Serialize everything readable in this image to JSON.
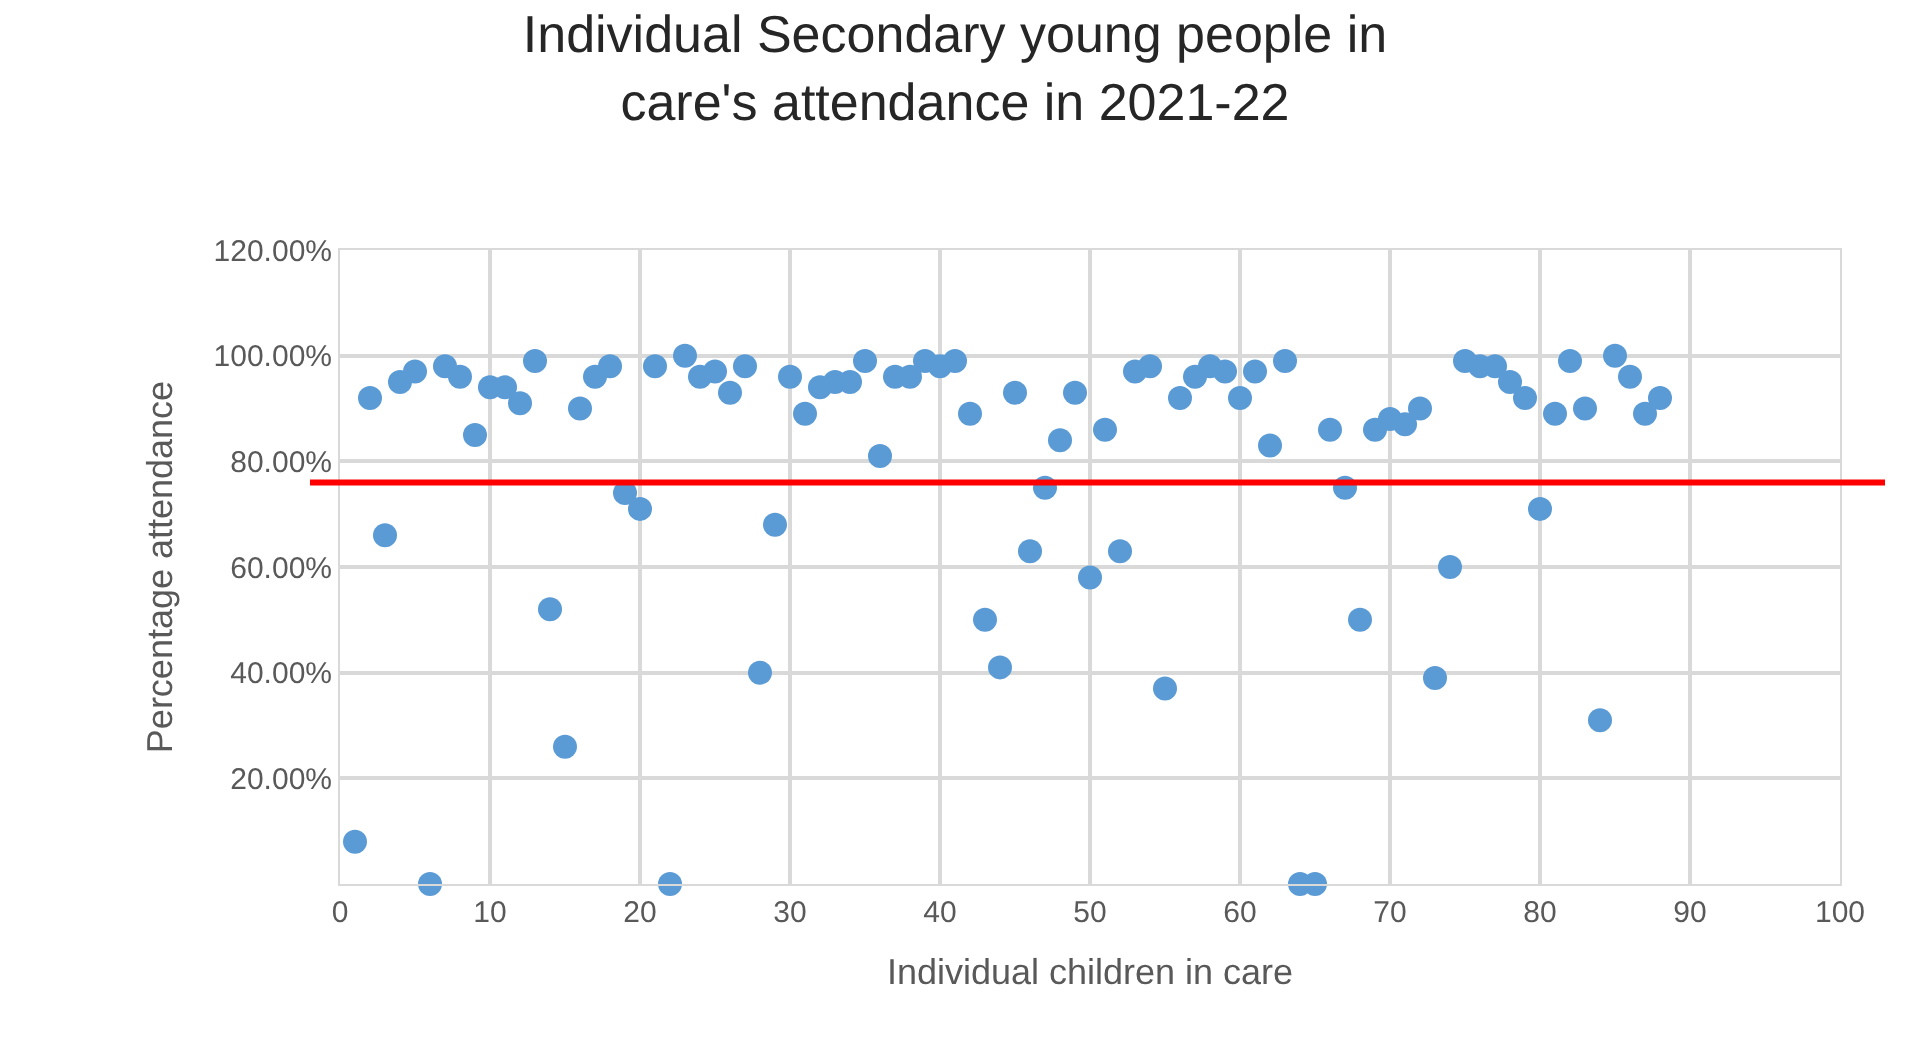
{
  "chart_data": {
    "type": "scatter",
    "title": "Individual Secondary young people in care's attendance in 2021-22",
    "xlabel": "Individual children in care",
    "ylabel": "Percentage attendance",
    "x": [
      1,
      2,
      3,
      4,
      5,
      6,
      7,
      8,
      9,
      10,
      11,
      12,
      13,
      14,
      15,
      16,
      17,
      18,
      19,
      20,
      21,
      22,
      23,
      24,
      25,
      26,
      27,
      28,
      29,
      30,
      31,
      32,
      33,
      34,
      35,
      36,
      37,
      38,
      39,
      40,
      41,
      42,
      43,
      44,
      45,
      46,
      47,
      48,
      49,
      50,
      51,
      52,
      53,
      54,
      55,
      56,
      57,
      58,
      59,
      60,
      61,
      62,
      63,
      64,
      65,
      66,
      67,
      68,
      69,
      70,
      71,
      72,
      73,
      74,
      75,
      76,
      77,
      78,
      79,
      80,
      81,
      82,
      83,
      84,
      85,
      86,
      87,
      88
    ],
    "series": [
      {
        "color": "#5b9bd5",
        "values": [
          8,
          92,
          66,
          95,
          97,
          0,
          98,
          96,
          85,
          94,
          94,
          91,
          99,
          52,
          26,
          90,
          96,
          98,
          74,
          71,
          98,
          0,
          100,
          96,
          97,
          93,
          98,
          40,
          68,
          96,
          89,
          94,
          95,
          95,
          99,
          81,
          96,
          96,
          99,
          98,
          99,
          89,
          50,
          41,
          93,
          63,
          75,
          84,
          93,
          58,
          86,
          63,
          97,
          98,
          37,
          92,
          96,
          98,
          97,
          92,
          97,
          83,
          99,
          0,
          0,
          86,
          75,
          50,
          86,
          88,
          87,
          90,
          39,
          60,
          99,
          98,
          98,
          95,
          92,
          71,
          89,
          99,
          90,
          31,
          100,
          96,
          89,
          92
        ]
      }
    ],
    "xlim": [
      0,
      100
    ],
    "xticks": [
      0,
      10,
      20,
      30,
      40,
      50,
      60,
      70,
      80,
      90,
      100
    ],
    "ylim": [
      0,
      120
    ],
    "yticks": [
      {
        "value": 0,
        "label": null
      },
      {
        "value": 20,
        "label": "20.00%"
      },
      {
        "value": 40,
        "label": "40.00%"
      },
      {
        "value": 60,
        "label": "60.00%"
      },
      {
        "value": 80,
        "label": "80.00%"
      },
      {
        "value": 100,
        "label": "100.00%"
      },
      {
        "value": 120,
        "label": "120.00%"
      }
    ],
    "ref_lines": [
      {
        "axis": "y",
        "value": 76,
        "color": "#ff0000",
        "line_style": "solid"
      }
    ],
    "grid": true,
    "marker": "circle"
  }
}
